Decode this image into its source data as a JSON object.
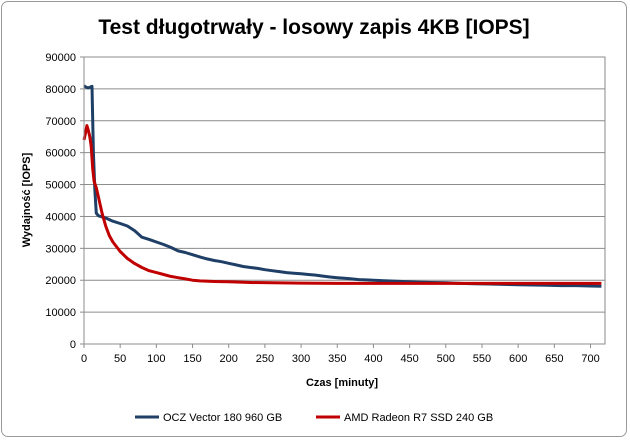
{
  "chart_data": {
    "type": "line",
    "title": "Test długotrwały - losowy zapis 4KB [IOPS]",
    "xlabel": "Czas [minuty]",
    "ylabel": "Wydajność [IOPS]",
    "xlim": [
      0,
      720
    ],
    "ylim": [
      0,
      90000
    ],
    "xticks": [
      0,
      50,
      100,
      150,
      200,
      250,
      300,
      350,
      400,
      450,
      500,
      550,
      600,
      650,
      700
    ],
    "yticks": [
      0,
      10000,
      20000,
      30000,
      40000,
      50000,
      60000,
      70000,
      80000,
      90000
    ],
    "grid": "horizontal",
    "legend_position": "bottom",
    "series": [
      {
        "name": "OCZ Vector 180 960 GB",
        "color": "#1f3f66",
        "points": [
          [
            0,
            81000
          ],
          [
            3,
            80500
          ],
          [
            6,
            80300
          ],
          [
            9,
            80600
          ],
          [
            11,
            80800
          ],
          [
            13,
            60000
          ],
          [
            15,
            48000
          ],
          [
            17,
            41000
          ],
          [
            20,
            40200
          ],
          [
            30,
            39500
          ],
          [
            40,
            38500
          ],
          [
            50,
            37800
          ],
          [
            60,
            37000
          ],
          [
            70,
            35500
          ],
          [
            80,
            33500
          ],
          [
            90,
            32800
          ],
          [
            100,
            32000
          ],
          [
            110,
            31200
          ],
          [
            120,
            30300
          ],
          [
            130,
            29200
          ],
          [
            140,
            28700
          ],
          [
            150,
            28000
          ],
          [
            160,
            27300
          ],
          [
            170,
            26700
          ],
          [
            180,
            26200
          ],
          [
            190,
            25800
          ],
          [
            200,
            25300
          ],
          [
            210,
            24800
          ],
          [
            220,
            24300
          ],
          [
            230,
            24000
          ],
          [
            240,
            23700
          ],
          [
            250,
            23300
          ],
          [
            260,
            23000
          ],
          [
            270,
            22700
          ],
          [
            280,
            22400
          ],
          [
            290,
            22200
          ],
          [
            300,
            22000
          ],
          [
            310,
            21800
          ],
          [
            320,
            21600
          ],
          [
            330,
            21300
          ],
          [
            340,
            21000
          ],
          [
            350,
            20800
          ],
          [
            360,
            20600
          ],
          [
            370,
            20400
          ],
          [
            380,
            20200
          ],
          [
            390,
            20100
          ],
          [
            400,
            20000
          ],
          [
            420,
            19800
          ],
          [
            440,
            19600
          ],
          [
            460,
            19400
          ],
          [
            480,
            19300
          ],
          [
            500,
            19200
          ],
          [
            520,
            19000
          ],
          [
            540,
            18900
          ],
          [
            560,
            18800
          ],
          [
            580,
            18700
          ],
          [
            600,
            18600
          ],
          [
            620,
            18500
          ],
          [
            640,
            18400
          ],
          [
            660,
            18300
          ],
          [
            680,
            18300
          ],
          [
            700,
            18200
          ],
          [
            715,
            18100
          ]
        ]
      },
      {
        "name": "AMD Radeon  R7 SSD 240 GB",
        "color": "#c00000",
        "points": [
          [
            0,
            64000
          ],
          [
            2,
            66000
          ],
          [
            4,
            68500
          ],
          [
            6,
            67000
          ],
          [
            8,
            65000
          ],
          [
            10,
            62000
          ],
          [
            12,
            55000
          ],
          [
            14,
            51000
          ],
          [
            17,
            49000
          ],
          [
            20,
            46000
          ],
          [
            25,
            41000
          ],
          [
            30,
            37000
          ],
          [
            35,
            34000
          ],
          [
            40,
            32000
          ],
          [
            50,
            29000
          ],
          [
            60,
            26800
          ],
          [
            70,
            25200
          ],
          [
            80,
            24000
          ],
          [
            90,
            23000
          ],
          [
            100,
            22400
          ],
          [
            110,
            21800
          ],
          [
            120,
            21200
          ],
          [
            130,
            20800
          ],
          [
            140,
            20400
          ],
          [
            150,
            20000
          ],
          [
            160,
            19800
          ],
          [
            180,
            19600
          ],
          [
            200,
            19500
          ],
          [
            230,
            19300
          ],
          [
            260,
            19200
          ],
          [
            300,
            19100
          ],
          [
            350,
            19000
          ],
          [
            400,
            19000
          ],
          [
            450,
            19000
          ],
          [
            500,
            19000
          ],
          [
            550,
            19000
          ],
          [
            600,
            19000
          ],
          [
            650,
            19000
          ],
          [
            700,
            19000
          ],
          [
            715,
            19000
          ]
        ]
      }
    ]
  }
}
